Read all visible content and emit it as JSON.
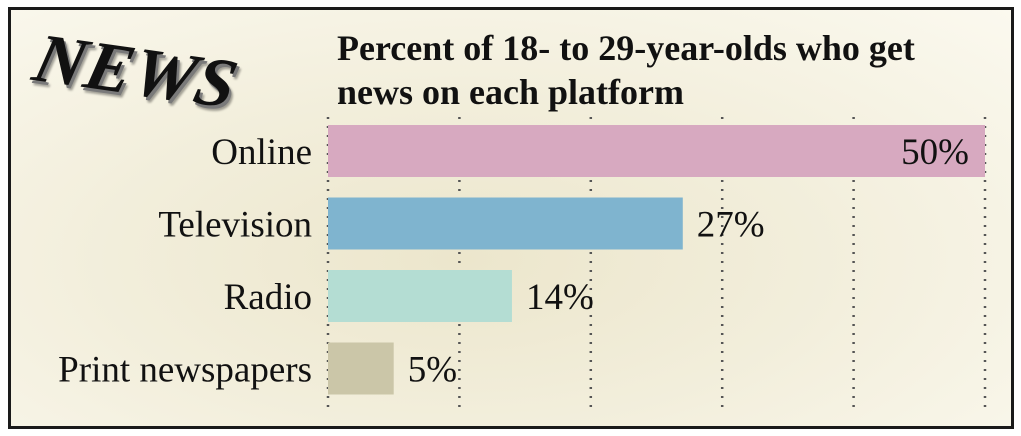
{
  "logo_text": "NEWS",
  "chart_data": {
    "type": "bar",
    "orientation": "horizontal",
    "title": "Percent of 18- to 29-year-olds who get news on each platform",
    "categories": [
      "Online",
      "Television",
      "Radio",
      "Print newspapers"
    ],
    "values": [
      50,
      27,
      14,
      5
    ],
    "value_labels": [
      "50%",
      "27%",
      "14%",
      "5%"
    ],
    "colors": [
      "#d7a9c0",
      "#7fb4cf",
      "#b4ddd3",
      "#cbc6a8"
    ],
    "xlim": [
      0,
      50
    ],
    "gridlines": [
      0,
      10,
      20,
      30,
      40,
      50
    ],
    "grid": "dotted vertical",
    "legend": "none"
  }
}
